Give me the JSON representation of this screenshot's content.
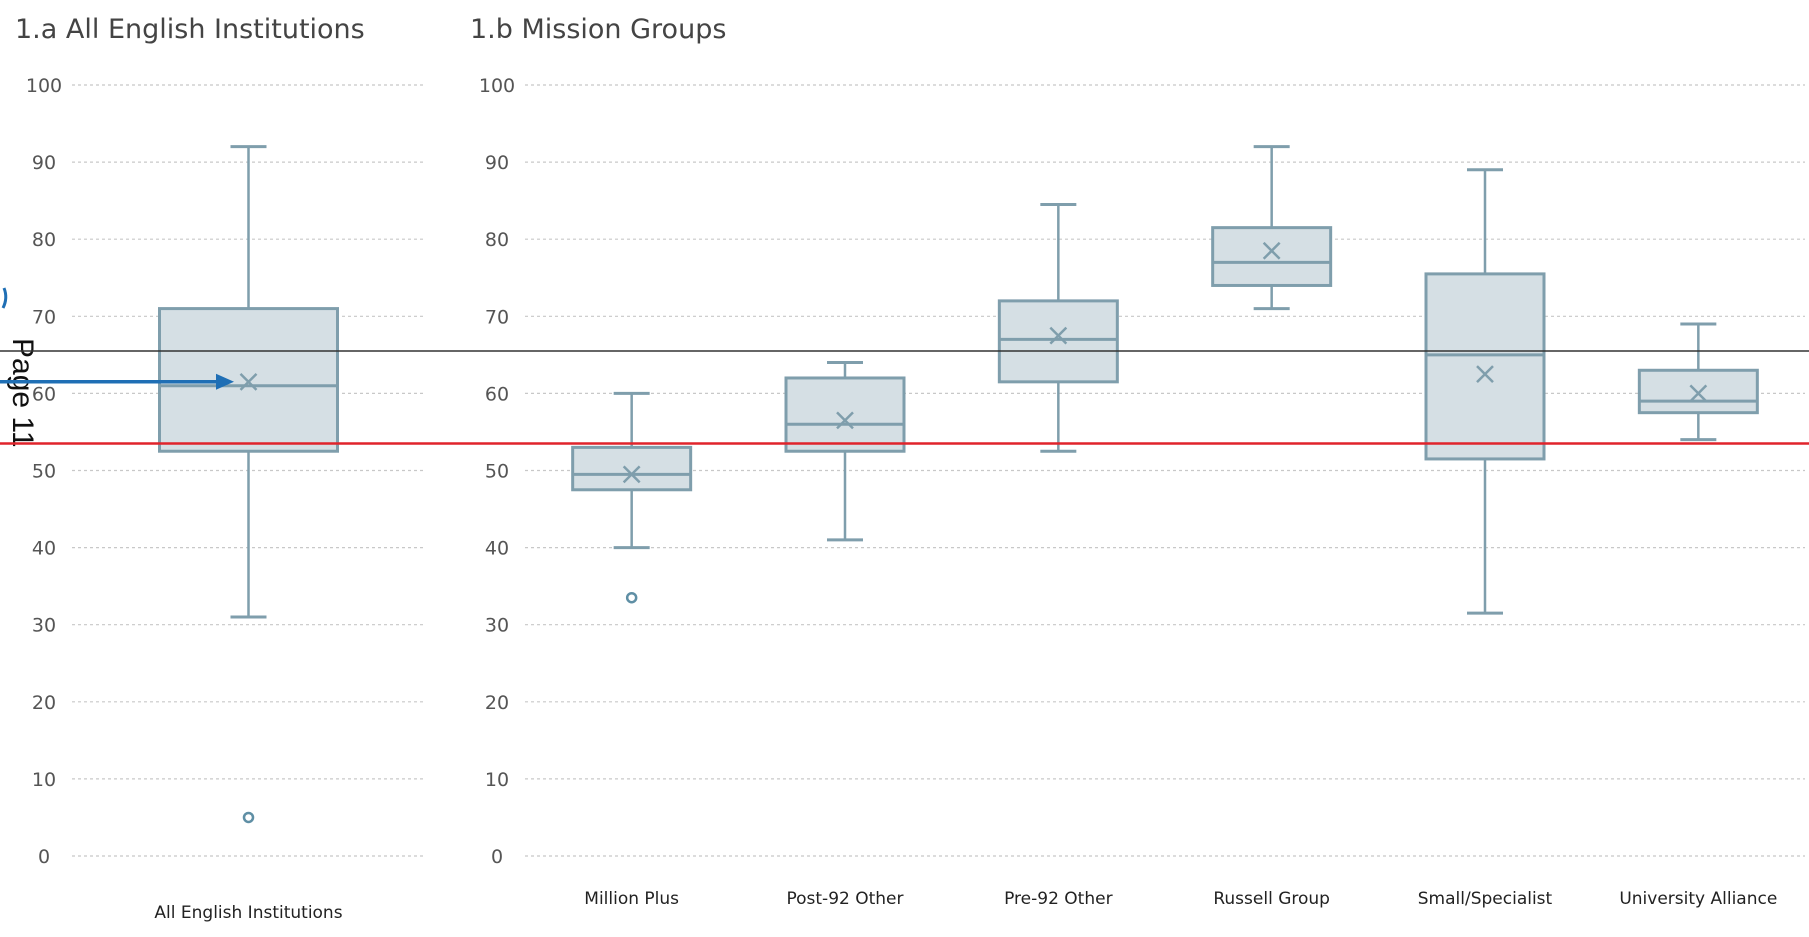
{
  "chart_data": [
    {
      "type": "box",
      "title": "1.a All English Institutions",
      "xlabel": "",
      "ylabel": "",
      "ylim": [
        0,
        100
      ],
      "yticks": [
        0,
        10,
        20,
        30,
        40,
        50,
        60,
        70,
        80,
        90,
        100
      ],
      "grid": true,
      "categories": [
        "All English Institutions"
      ],
      "boxes": [
        {
          "category": "All English Institutions",
          "min": 31,
          "q1": 52.5,
          "median": 61,
          "q3": 71,
          "max": 92,
          "mean": 61.5,
          "outliers": [
            5
          ]
        }
      ]
    },
    {
      "type": "box",
      "title": "1.b Mission Groups",
      "xlabel": "",
      "ylabel": "",
      "ylim": [
        0,
        100
      ],
      "yticks": [
        0,
        10,
        20,
        30,
        40,
        50,
        60,
        70,
        80,
        90,
        100
      ],
      "grid": true,
      "categories": [
        "Million Plus",
        "Post-92 Other",
        "Pre-92 Other",
        "Russell Group",
        "Small/Specialist",
        "University Alliance"
      ],
      "boxes": [
        {
          "category": "Million Plus",
          "min": 40,
          "q1": 47.5,
          "median": 49.5,
          "q3": 53,
          "max": 60,
          "mean": 49.5,
          "outliers": [
            33.5
          ]
        },
        {
          "category": "Post-92 Other",
          "min": 41,
          "q1": 52.5,
          "median": 56,
          "q3": 62,
          "max": 64,
          "mean": 56.5,
          "outliers": []
        },
        {
          "category": "Pre-92 Other",
          "min": 52.5,
          "q1": 61.5,
          "median": 67,
          "q3": 72,
          "max": 84.5,
          "mean": 67.5,
          "outliers": []
        },
        {
          "category": "Russell Group",
          "min": 71,
          "q1": 74,
          "median": 77,
          "q3": 81.5,
          "max": 92,
          "mean": 78.5,
          "outliers": []
        },
        {
          "category": "Small/Specialist",
          "min": 31.5,
          "q1": 51.5,
          "median": 65,
          "q3": 75.5,
          "max": 89,
          "mean": 62.5,
          "outliers": []
        },
        {
          "category": "University Alliance",
          "min": 54,
          "q1": 57.5,
          "median": 59,
          "q3": 63,
          "max": 69,
          "mean": 60,
          "outliers": []
        }
      ]
    }
  ],
  "annotations": {
    "page_label": "Page 11",
    "reference_lines": [
      {
        "value": 65.5,
        "color": "#333333"
      },
      {
        "value": 53.5,
        "color": "#e0242b"
      }
    ],
    "arrow_target_value": 61,
    "arrow_color": "#1f6fb5"
  },
  "colors": {
    "box_fill": "#d5dfe4",
    "box_stroke": "#7f9eac",
    "grid": "#c8c8c8",
    "outlier": "#5f8fa5"
  }
}
